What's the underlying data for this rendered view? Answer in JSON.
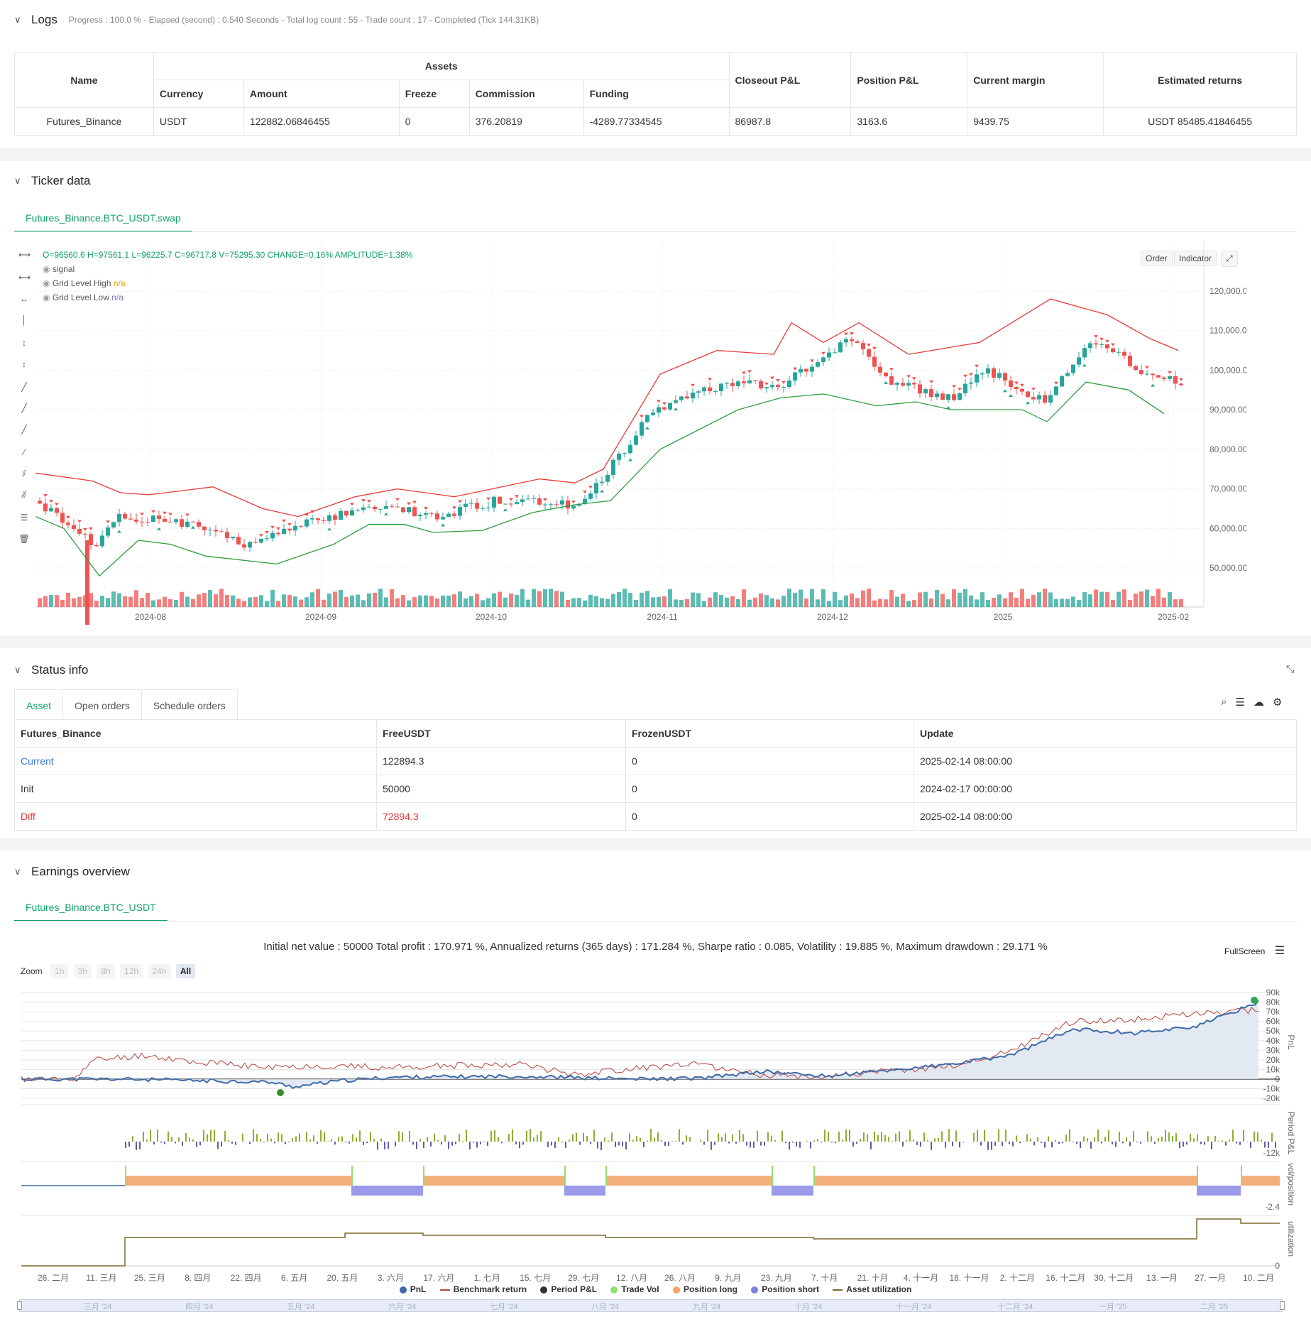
{
  "logs": {
    "title": "Logs",
    "progress": "Progress : 100.0 % - Elapsed (second) : 0.540  Seconds - Total log count : 55 - Trade count : 17 - Completed (Tick 144.31KB)",
    "headers": {
      "name": "Name",
      "assets": "Assets",
      "currency": "Currency",
      "amount": "Amount",
      "freeze": "Freeze",
      "commission": "Commission",
      "funding": "Funding",
      "closeout": "Closeout P&L",
      "position": "Position P&L",
      "margin": "Current margin",
      "returns": "Estimated returns"
    },
    "row": {
      "name": "Futures_Binance",
      "currency": "USDT",
      "amount": "122882.06846455",
      "freeze": "0",
      "commission": "376.20819",
      "funding": "-4289.77334545",
      "closeout": "86987.8",
      "position": "3163.6",
      "margin": "9439.75",
      "returns": "USDT 85485.41846455"
    }
  },
  "ticker": {
    "title": "Ticker data",
    "tab": "Futures_Binance.BTC_USDT.swap",
    "ohlc": "O=96560.6 H=97561.1 L=96225.7 C=96717.8 V=75295.30 CHANGE=0.16% AMPLITUDE=1.38%",
    "legend_signal": "signal",
    "legend_high": "Grid Level High",
    "legend_high_val": "n/a",
    "legend_low": "Grid Level Low",
    "legend_low_val": "n/a",
    "btn_order": "Order",
    "btn_indicator": "Indicator",
    "y_ticks": [
      "120,000.00",
      "110,000.00",
      "100,000.00",
      "90,000.00",
      "80,000.00",
      "70,000.00",
      "60,000.00",
      "50,000.00"
    ],
    "x_ticks": [
      "2024-08",
      "2024-09",
      "2024-10",
      "2024-11",
      "2024-12",
      "2025",
      "2025-02"
    ],
    "colors": {
      "up": "#26a69a",
      "down": "#ef5350",
      "grid_high": "#e53935",
      "grid_low": "#2e9e3e"
    }
  },
  "status": {
    "title": "Status info",
    "tabs": [
      "Asset",
      "Open orders",
      "Schedule orders"
    ],
    "headers": [
      "Futures_Binance",
      "FreeUSDT",
      "FrozenUSDT",
      "Update"
    ],
    "rows": [
      {
        "label": "Current",
        "free": "122894.3",
        "frozen": "0",
        "update": "2025-02-14 08:00:00"
      },
      {
        "label": "Init",
        "free": "50000",
        "frozen": "0",
        "update": "2024-02-17 00:00:00"
      },
      {
        "label": "Diff",
        "free": "72894.3",
        "frozen": "0",
        "update": "2025-02-14 08:00:00"
      }
    ]
  },
  "earnings": {
    "title": "Earnings overview",
    "tab": "Futures_Binance.BTC_USDT",
    "summary": "Initial net value : 50000 Total profit : 170.971 %, Annualized returns (365 days) : 171.284 %, Sharpe ratio : 0.085, Volatility : 19.885 %, Maximum drawdown : 29.171 %",
    "fullscreen": "FullScreen",
    "zoom_label": "Zoom",
    "zoom_buttons": [
      "1h",
      "3h",
      "8h",
      "12h",
      "24h",
      "All"
    ],
    "pnl_ticks": [
      "90k",
      "80k",
      "70k",
      "60k",
      "50k",
      "40k",
      "30k",
      "20k",
      "10k",
      "0",
      "-10k",
      "-20k"
    ],
    "period_tick": "-12k",
    "vol_tick": "-2.4",
    "util_tick": "0",
    "axis_labels": [
      "PnL",
      "Period P&L",
      "vol/position",
      "utilization"
    ],
    "x_ticks": [
      "26. 二月",
      "11. 三月",
      "25. 三月",
      "8. 四月",
      "22. 四月",
      "6. 五月",
      "20. 五月",
      "3. 六月",
      "17. 六月",
      "1. 七月",
      "15. 七月",
      "29. 七月",
      "12. 八月",
      "26. 八月",
      "9. 九月",
      "23. 九月",
      "7. 十月",
      "21. 十月",
      "4. 十一月",
      "18. 十一月",
      "2. 十二月",
      "16. 十二月",
      "30. 十二月",
      "13. 一月",
      "27. 一月",
      "10. 二月"
    ],
    "nav_ticks": [
      "三月 '24",
      "四月 '24",
      "五月 '24",
      "六月 '24",
      "七月 '24",
      "八月 '24",
      "九月 '24",
      "十月 '24",
      "十一月 '24",
      "十二月 '24",
      "一月 '25",
      "二月 '25"
    ],
    "legend": [
      {
        "name": "PnL",
        "color": "#3f6aa8"
      },
      {
        "name": "Benchmark return",
        "color": "#b5413b"
      },
      {
        "name": "Period P&L",
        "color": "#333333"
      },
      {
        "name": "Trade Vol",
        "color": "#90e070"
      },
      {
        "name": "Position long",
        "color": "#f4a460"
      },
      {
        "name": "Position short",
        "color": "#8080e0"
      },
      {
        "name": "Asset utilization",
        "color": "#7a6a2a"
      }
    ]
  }
}
